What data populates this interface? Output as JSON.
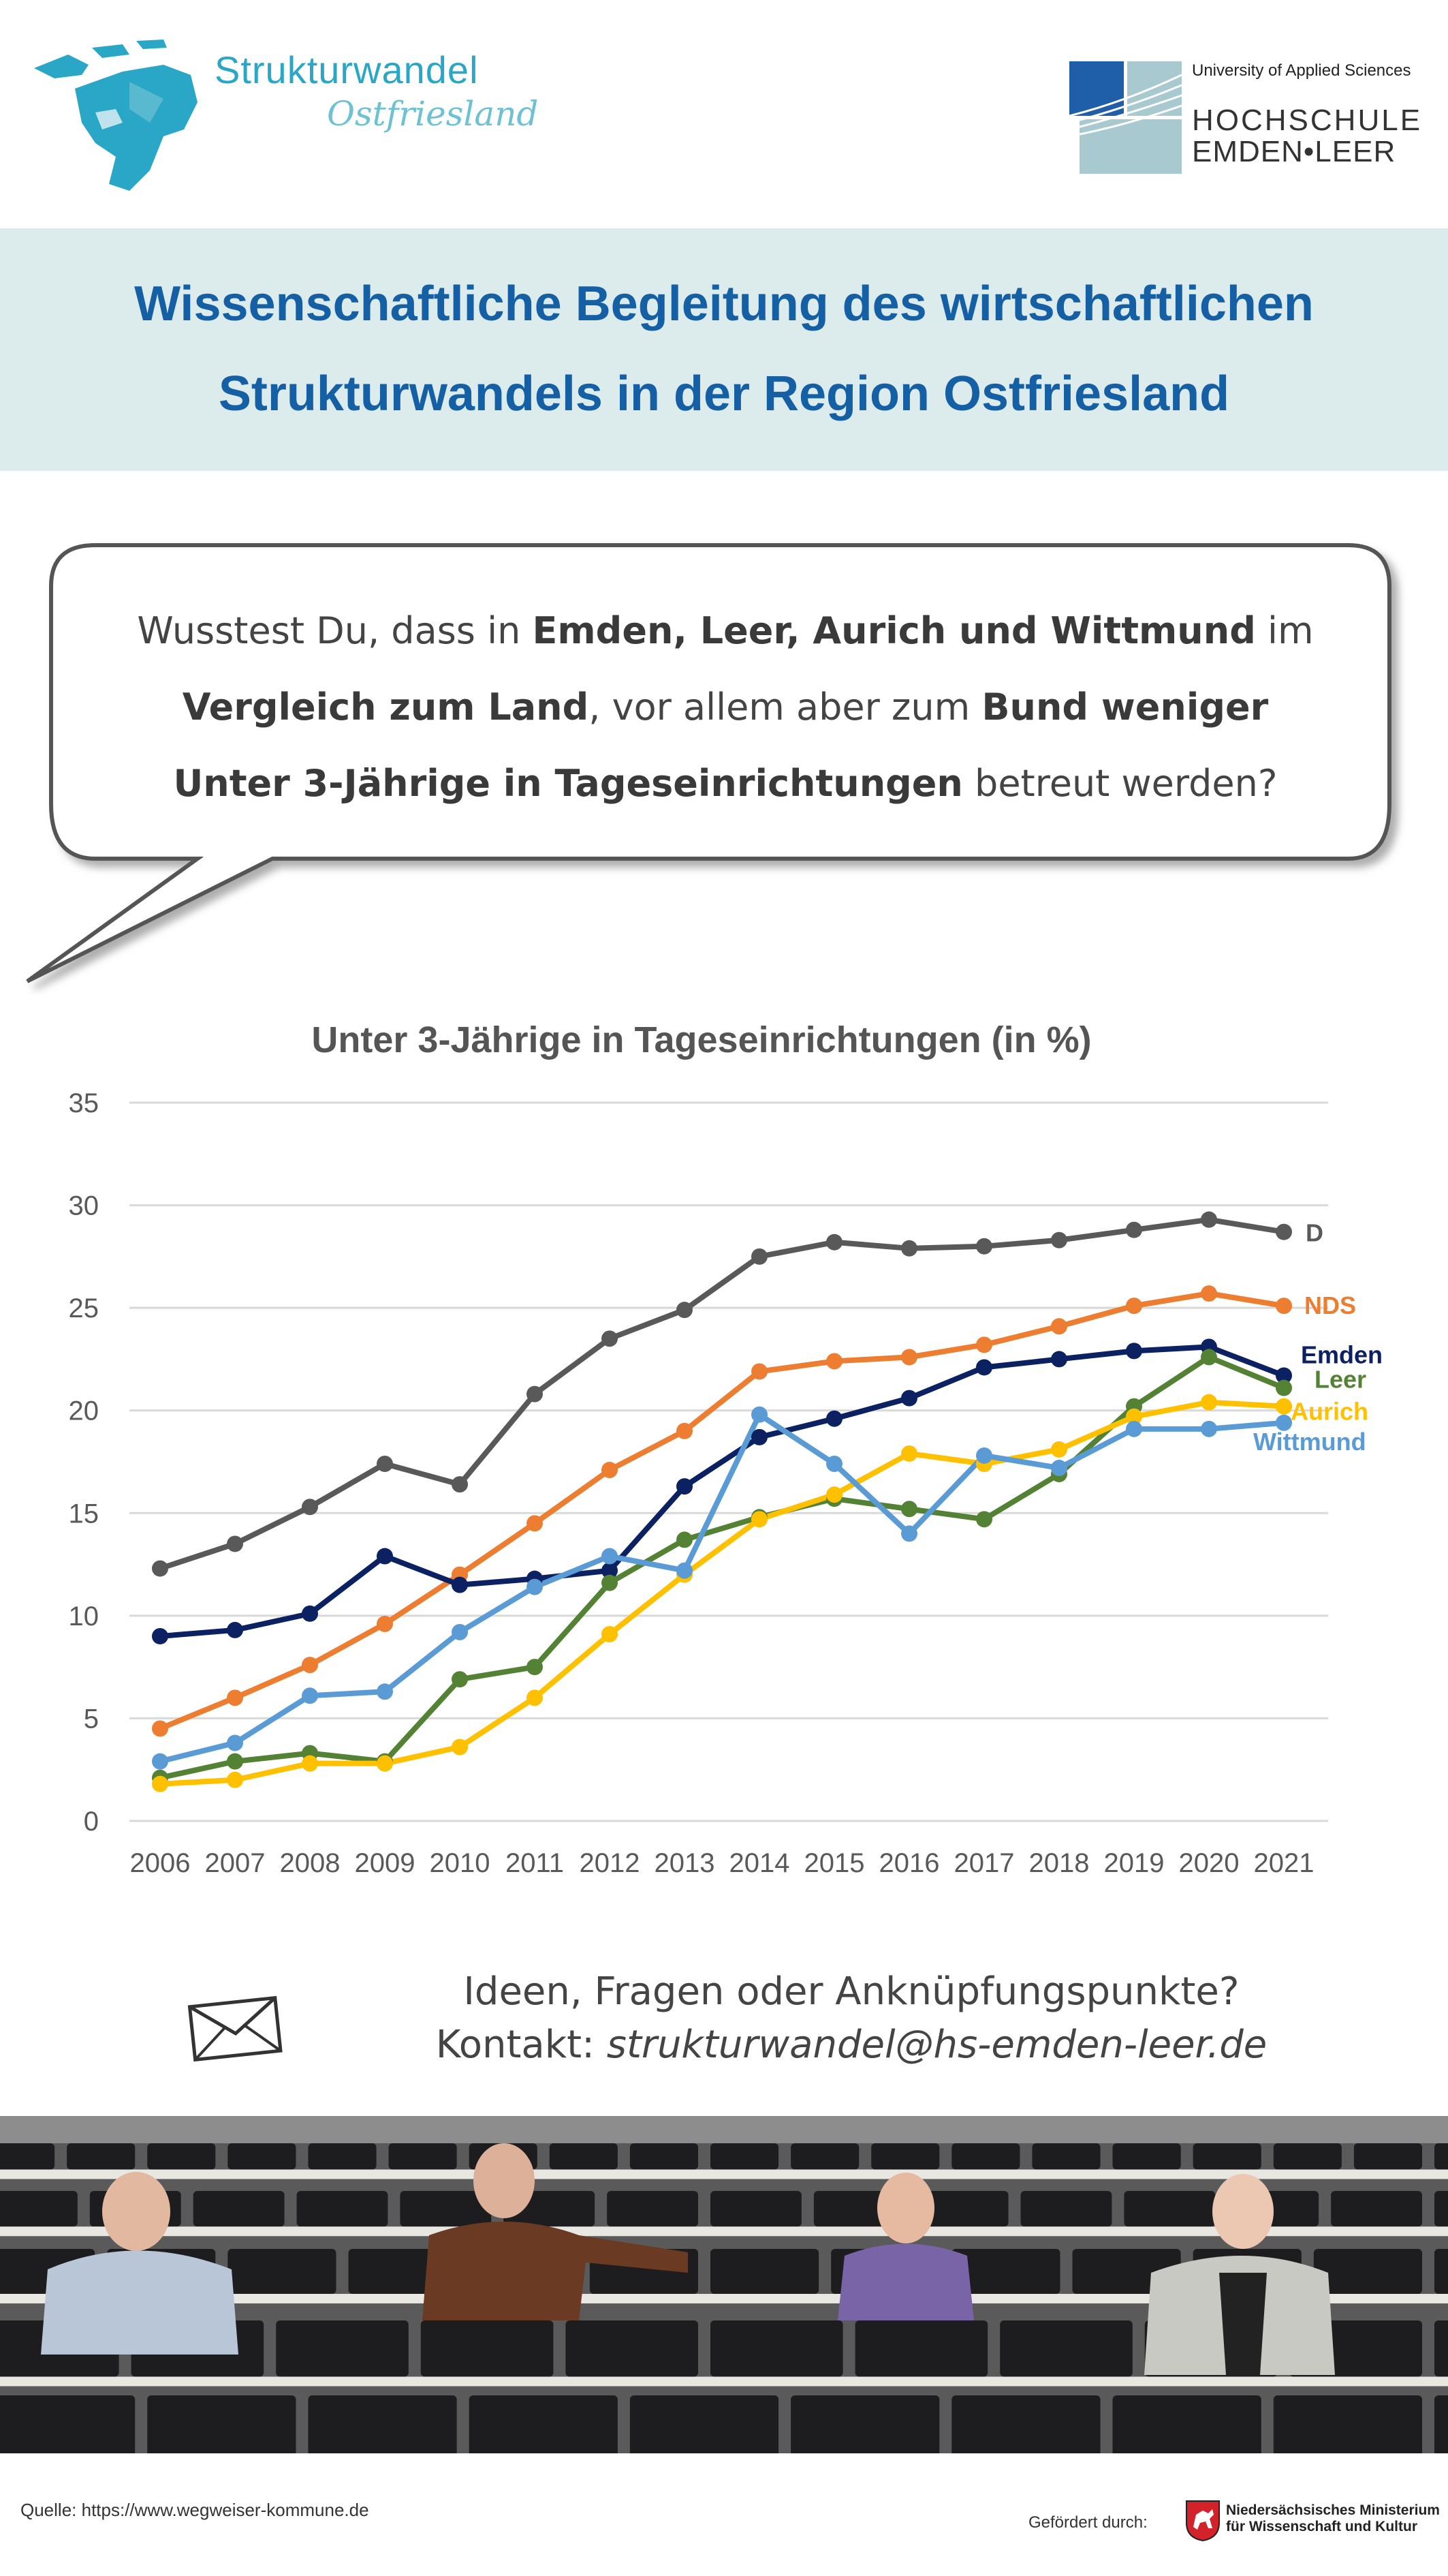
{
  "header": {
    "brand_line1": "Strukturwandel",
    "brand_line2": "Ostfriesland",
    "uni_sub": "University of Applied Sciences",
    "uni_name1": "HOCHSCHULE",
    "uni_name2": "EMDEN•LEER"
  },
  "title": {
    "line1": "Wissenschaftliche Begleitung des wirtschaftlichen",
    "line2": "Strukturwandels in der Region Ostfriesland"
  },
  "bubble": {
    "l1a": "Wusstest Du, dass in ",
    "l1b": "Emden, Leer, Aurich und Wittmund",
    "l1c": " im",
    "l2a": "Vergleich zum Land",
    "l2b": ", vor allem aber zum ",
    "l2c": "Bund weniger",
    "l3a": "Unter 3-Jährige in Tageseinrichtungen",
    "l3b": " betreut werden?"
  },
  "chart_data": {
    "type": "line",
    "title": "Unter 3-Jährige in Tageseinrichtungen (in %)",
    "xlabel": "",
    "ylabel": "",
    "ylim": [
      0,
      35
    ],
    "yticks": [
      "0",
      "5",
      "10",
      "15",
      "20",
      "25",
      "30",
      "35"
    ],
    "grid": true,
    "categories": [
      "2006",
      "2007",
      "2008",
      "2009",
      "2010",
      "2011",
      "2012",
      "2013",
      "2014",
      "2015",
      "2016",
      "2017",
      "2018",
      "2019",
      "2020",
      "2021"
    ],
    "series": [
      {
        "name": "D",
        "color": "#595959",
        "values": [
          12.3,
          13.5,
          15.3,
          17.4,
          16.4,
          20.8,
          23.5,
          24.9,
          27.5,
          28.2,
          27.9,
          28.0,
          28.3,
          28.8,
          29.3,
          28.7
        ]
      },
      {
        "name": "NDS",
        "color": "#ed7d31",
        "values": [
          4.5,
          6.0,
          7.6,
          9.6,
          12.0,
          14.5,
          17.1,
          19.0,
          21.9,
          22.4,
          22.6,
          23.2,
          24.1,
          25.1,
          25.7,
          25.1
        ]
      },
      {
        "name": "Emden",
        "color": "#0b2161",
        "values": [
          9.0,
          9.3,
          10.1,
          12.9,
          11.5,
          11.8,
          12.2,
          16.3,
          18.7,
          19.6,
          20.6,
          22.1,
          22.5,
          22.9,
          23.1,
          21.7
        ]
      },
      {
        "name": "Leer",
        "color": "#548235",
        "values": [
          2.1,
          2.9,
          3.3,
          2.9,
          6.9,
          7.5,
          11.6,
          13.7,
          14.8,
          15.7,
          15.2,
          14.7,
          16.9,
          20.2,
          22.6,
          21.1
        ]
      },
      {
        "name": "Aurich",
        "color": "#ffc000",
        "values": [
          1.8,
          2.0,
          2.8,
          2.8,
          3.6,
          6.0,
          9.1,
          12.0,
          14.7,
          15.9,
          17.9,
          17.4,
          18.1,
          19.7,
          20.4,
          20.2
        ]
      },
      {
        "name": "Wittmund",
        "color": "#5b9bd5",
        "values": [
          2.9,
          3.8,
          6.1,
          6.3,
          9.2,
          11.4,
          12.9,
          12.2,
          19.8,
          17.4,
          14.0,
          17.8,
          17.2,
          19.1,
          19.1,
          19.4
        ]
      }
    ]
  },
  "contact": {
    "line1": "Ideen, Fragen oder Anknüpfungspunkte?",
    "label": "Kontakt: ",
    "email": "strukturwandel@hs-emden-leer.de"
  },
  "footer": {
    "source": "Quelle: https://www.wegweiser-kommune.de",
    "funded_by": "Gefördert durch:",
    "ministry_line1": "Niedersächsisches Ministerium",
    "ministry_line2": "für Wissenschaft und Kultur"
  },
  "colors": {
    "title_blue": "#1560a5",
    "band_bg": "#dcebec",
    "brand_cyan": "#2aa7c7"
  }
}
